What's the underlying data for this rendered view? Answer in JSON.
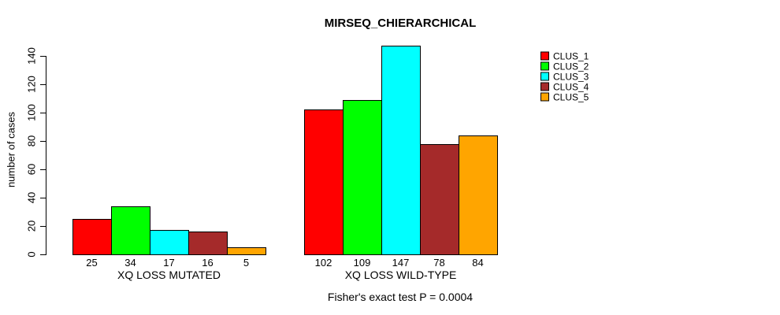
{
  "title": "MIRSEQ_CHIERARCHICAL",
  "chart_data": {
    "type": "bar",
    "title": "MIRSEQ_CHIERARCHICAL",
    "xlabel": "",
    "ylabel": "number of cases",
    "ylim": [
      0,
      150
    ],
    "yticks": [
      0,
      20,
      40,
      60,
      80,
      100,
      120,
      140
    ],
    "grid": false,
    "legend_position": "top-right",
    "categories": [
      "XQ LOSS MUTATED",
      "XQ LOSS WILD-TYPE"
    ],
    "series": [
      {
        "name": "CLUS_1",
        "color": "#FF0000",
        "values": [
          25,
          102
        ]
      },
      {
        "name": "CLUS_2",
        "color": "#00FF00",
        "values": [
          34,
          109
        ]
      },
      {
        "name": "CLUS_3",
        "color": "#00FFFF",
        "values": [
          17,
          147
        ]
      },
      {
        "name": "CLUS_4",
        "color": "#A52A2A",
        "values": [
          16,
          78
        ]
      },
      {
        "name": "CLUS_5",
        "color": "#FFA500",
        "values": [
          5,
          84
        ]
      }
    ],
    "bar_labels": [
      [
        25,
        34,
        17,
        16,
        5
      ],
      [
        102,
        109,
        147,
        78,
        84
      ]
    ],
    "annotation": "Fisher's exact test P = 0.0004"
  },
  "colors": {
    "background": "#FFFFFF",
    "axis": "#000000",
    "text": "#000000"
  }
}
